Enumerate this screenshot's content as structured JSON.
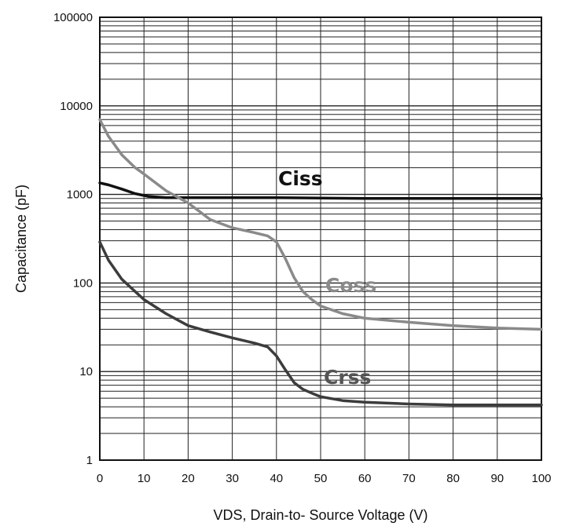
{
  "chart_data": {
    "type": "line",
    "title": "",
    "xlabel": "VDS, Drain-to- Source Voltage (V)",
    "ylabel": "Capacitance (pF)",
    "xlim": [
      0,
      100
    ],
    "ylim": [
      1,
      100000
    ],
    "yscale": "log",
    "grid": true,
    "legend": "inline labels",
    "x_ticks": [
      "0",
      "10",
      "20",
      "30",
      "40",
      "50",
      "60",
      "70",
      "80",
      "90",
      "100"
    ],
    "y_ticks": [
      "1",
      "10",
      "100",
      "1000",
      "10000",
      "100000"
    ],
    "series": [
      {
        "name": "Ciss",
        "color": "#111111",
        "x": [
          0,
          2,
          5,
          8,
          11,
          15,
          20,
          30,
          40,
          50,
          60,
          70,
          80,
          90,
          100
        ],
        "y": [
          1350,
          1280,
          1150,
          1020,
          950,
          920,
          920,
          920,
          920,
          910,
          900,
          900,
          900,
          900,
          900
        ]
      },
      {
        "name": "Coss",
        "color": "#8a8a8a",
        "x": [
          0,
          2,
          5,
          8,
          10,
          15,
          20,
          25,
          30,
          35,
          38,
          40,
          42,
          44,
          46,
          48,
          50,
          55,
          60,
          70,
          80,
          90,
          100
        ],
        "y": [
          7000,
          4500,
          2800,
          2000,
          1700,
          1100,
          800,
          520,
          420,
          370,
          340,
          290,
          190,
          115,
          80,
          65,
          55,
          45,
          40,
          36,
          33,
          31,
          30
        ]
      },
      {
        "name": "Crss",
        "color": "#3c3c3c",
        "x": [
          0,
          2,
          5,
          8,
          10,
          15,
          20,
          25,
          30,
          35,
          38,
          40,
          42,
          44,
          46,
          48,
          50,
          55,
          60,
          70,
          80,
          90,
          100
        ],
        "y": [
          290,
          180,
          110,
          80,
          65,
          45,
          33,
          28,
          24,
          21,
          19,
          15,
          10.5,
          7.5,
          6.3,
          5.7,
          5.2,
          4.7,
          4.5,
          4.3,
          4.2,
          4.2,
          4.2
        ]
      }
    ]
  }
}
